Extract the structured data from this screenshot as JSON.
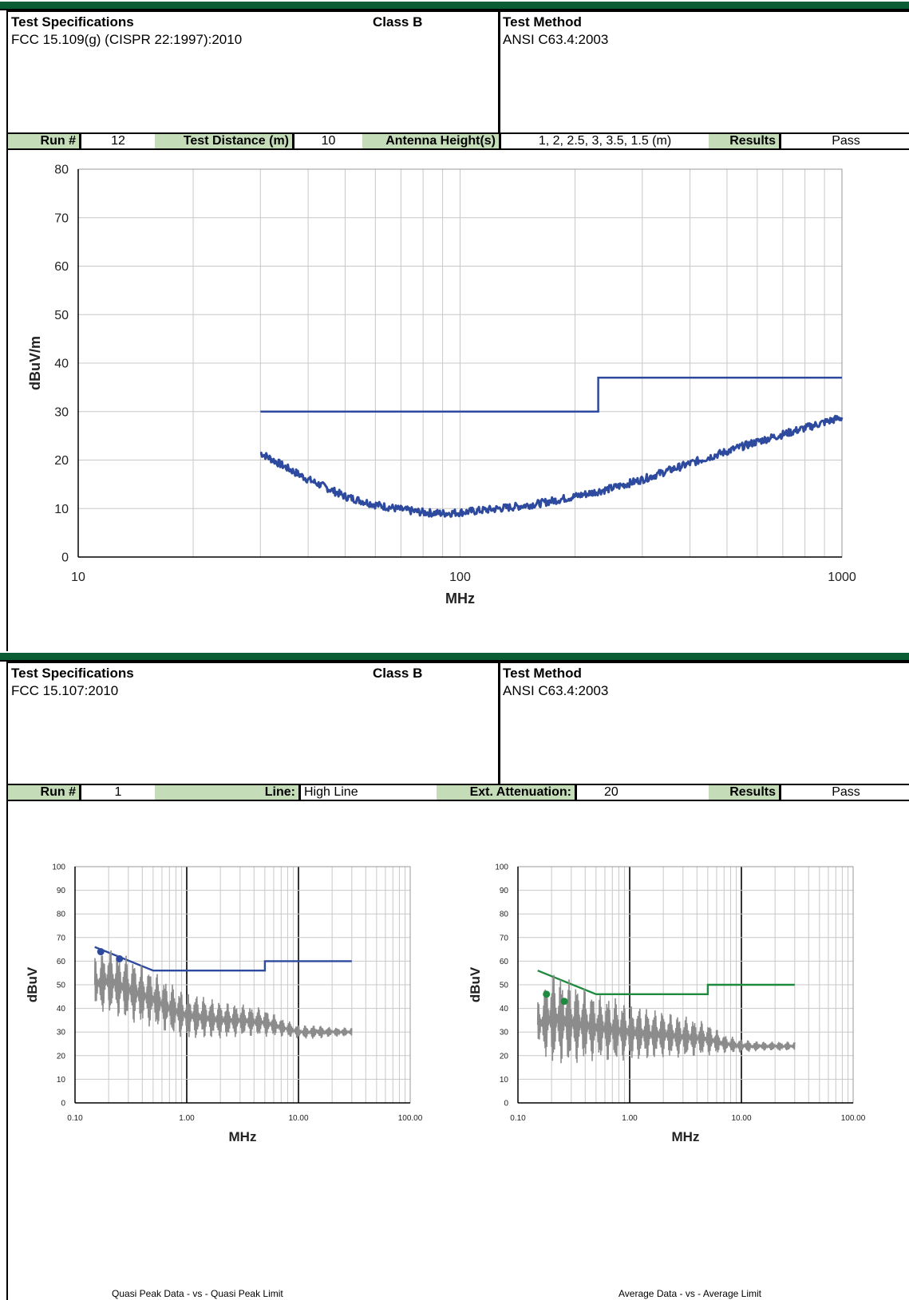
{
  "section1": {
    "spec_label": "Test Specifications",
    "spec_value": "FCC 15.109(g) (CISPR 22:1997):2010",
    "class_label": "Class B",
    "method_label": "Test Method",
    "method_value": "ANSI C63.4:2003",
    "run_label": "Run #",
    "run_value": "12",
    "dist_label": "Test Distance (m)",
    "dist_value": "10",
    "ant_label": "Antenna Height(s)",
    "ant_value": "1, 2, 2.5, 3, 3.5, 1.5 (m)",
    "results_label": "Results",
    "results_value": "Pass"
  },
  "section2": {
    "spec_label": "Test Specifications",
    "spec_value": "FCC 15.107:2010",
    "class_label": "Class B",
    "method_label": "Test Method",
    "method_value": "ANSI C63.4:2003",
    "run_label": "Run #",
    "run_value": "1",
    "line_label": "Line:",
    "line_value": "High Line",
    "atten_label": "Ext. Attenuation:",
    "atten_value": "20",
    "results_label": "Results",
    "results_value": "Pass"
  },
  "footer": {
    "left_caption": "Quasi Peak Data - vs - Quasi Peak Limit",
    "right_caption": "Average Data - vs - Average Limit"
  },
  "colors": {
    "radiated": "#2e4a9e",
    "qp_limit": "#2e4a9e",
    "avg_limit": "#1e8a3e",
    "scan": "#8c8c8c"
  },
  "chart_data": [
    {
      "type": "line",
      "title": "",
      "xlabel": "MHz",
      "ylabel": "dBuV/m",
      "xscale": "log",
      "xlim": [
        10,
        1000
      ],
      "ylim": [
        0,
        80
      ],
      "xticks": [
        "10",
        "100",
        "1000"
      ],
      "yticks": [
        "0",
        "10",
        "20",
        "30",
        "40",
        "50",
        "60",
        "70",
        "80"
      ],
      "grid": true,
      "series": [
        {
          "role": "limit",
          "x": [
            30,
            230,
            230,
            1000
          ],
          "y": [
            30,
            30,
            37,
            37
          ]
        },
        {
          "role": "data",
          "x": [
            30,
            35,
            40,
            45,
            50,
            60,
            70,
            80,
            90,
            100,
            120,
            140,
            160,
            180,
            200,
            250,
            300,
            350,
            400,
            500,
            600,
            700,
            800,
            900,
            1000
          ],
          "y": [
            21.5,
            18.5,
            16,
            14.2,
            12.5,
            10.8,
            9.8,
            9.2,
            9,
            9.2,
            9.8,
            10.4,
            11,
            11.8,
            12.5,
            14.2,
            16,
            17.8,
            19.3,
            21.8,
            23.8,
            25.3,
            26.6,
            27.8,
            28.8
          ]
        }
      ]
    },
    {
      "type": "line",
      "title": "Quasi Peak Data - vs - Quasi Peak Limit",
      "xlabel": "MHz",
      "ylabel": "dBuV",
      "xscale": "log",
      "xlim": [
        0.1,
        100
      ],
      "ylim": [
        0,
        100
      ],
      "xticks": [
        "0.10",
        "1.00",
        "10.00",
        "100.00"
      ],
      "yticks": [
        "0",
        "10",
        "20",
        "30",
        "40",
        "50",
        "60",
        "70",
        "80",
        "90",
        "100"
      ],
      "grid": true,
      "series": [
        {
          "role": "limit",
          "x": [
            0.15,
            0.5,
            5,
            5,
            30
          ],
          "y": [
            66,
            56,
            56,
            60,
            60
          ]
        },
        {
          "role": "scan",
          "x": [
            0.15,
            0.2,
            0.3,
            0.5,
            0.7,
            1,
            1.5,
            2,
            3,
            5,
            7,
            10,
            15,
            20,
            30
          ],
          "y": [
            50,
            52,
            48,
            44,
            40,
            37,
            36,
            35,
            35,
            34,
            32,
            30,
            30,
            30,
            30
          ],
          "swing": [
            12,
            14,
            14,
            12,
            11,
            10,
            9,
            8,
            7,
            6,
            4,
            3,
            3,
            2,
            2
          ]
        },
        {
          "role": "peaks",
          "x": [
            0.17,
            0.25
          ],
          "y": [
            64,
            61
          ]
        }
      ]
    },
    {
      "type": "line",
      "title": "Average Data - vs - Average Limit",
      "xlabel": "MHz",
      "ylabel": "dBuV",
      "xscale": "log",
      "xlim": [
        0.1,
        100
      ],
      "ylim": [
        0,
        100
      ],
      "xticks": [
        "0.10",
        "1.00",
        "10.00",
        "100.00"
      ],
      "yticks": [
        "0",
        "10",
        "20",
        "30",
        "40",
        "50",
        "60",
        "70",
        "80",
        "90",
        "100"
      ],
      "grid": true,
      "series": [
        {
          "role": "limit",
          "x": [
            0.15,
            0.5,
            5,
            5,
            30
          ],
          "y": [
            56,
            46,
            46,
            50,
            50
          ]
        },
        {
          "role": "scan",
          "x": [
            0.15,
            0.2,
            0.3,
            0.5,
            0.7,
            1,
            1.5,
            2,
            3,
            5,
            7,
            10,
            15,
            20,
            30
          ],
          "y": [
            33,
            36,
            34,
            32,
            31,
            30,
            29,
            29,
            28,
            27,
            25,
            24,
            24,
            24,
            24
          ],
          "swing": [
            10,
            20,
            18,
            14,
            14,
            12,
            11,
            10,
            9,
            7,
            4,
            3,
            2,
            2,
            2
          ]
        },
        {
          "role": "peaks",
          "x": [
            0.18,
            0.26
          ],
          "y": [
            46,
            43
          ]
        }
      ]
    }
  ]
}
